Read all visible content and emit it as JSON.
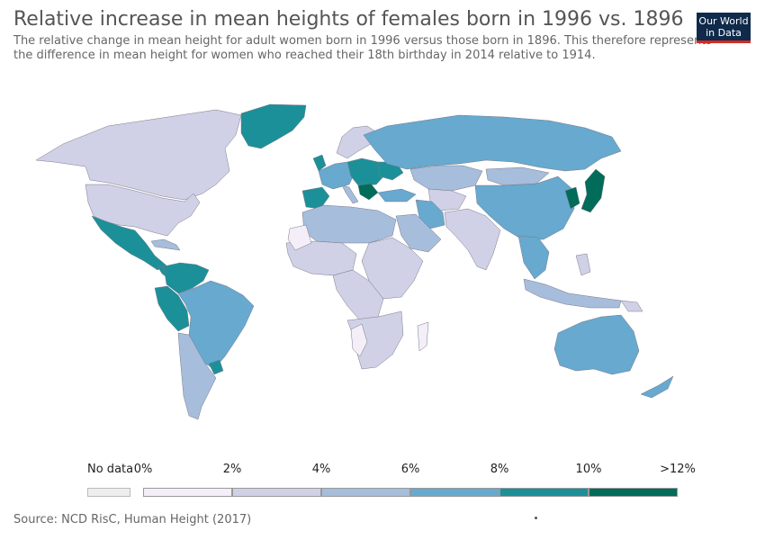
{
  "header": {
    "title": "Relative increase in mean heights of females born in 1996 vs. 1896",
    "subtitle": "The relative change in mean height for adult women born in 1996 versus those born in 1896. This therefore represents the difference in mean height for women who reached their 18th birthday in 2014 relative to 1914."
  },
  "logo": {
    "line1": "Our World",
    "line2": "in Data"
  },
  "legend": {
    "no_data": {
      "label": "No data",
      "color": "#eeeeee"
    },
    "ticks": [
      "0%",
      "2%",
      "4%",
      "6%",
      "8%",
      "10%",
      ">12%"
    ],
    "bins": [
      {
        "range": "0% - 2%",
        "color": "#f3eef7"
      },
      {
        "range": "2% - 4%",
        "color": "#d0d1e6"
      },
      {
        "range": "4% - 6%",
        "color": "#a6bddb"
      },
      {
        "range": "6% - 8%",
        "color": "#67a9cf"
      },
      {
        "range": "8% - 10%",
        "color": "#1c9099"
      },
      {
        "range": "10% - 12%+",
        "color": "#016c59"
      }
    ]
  },
  "footer": {
    "source": "Source: NCD RisC, Human Height (2017)"
  }
}
